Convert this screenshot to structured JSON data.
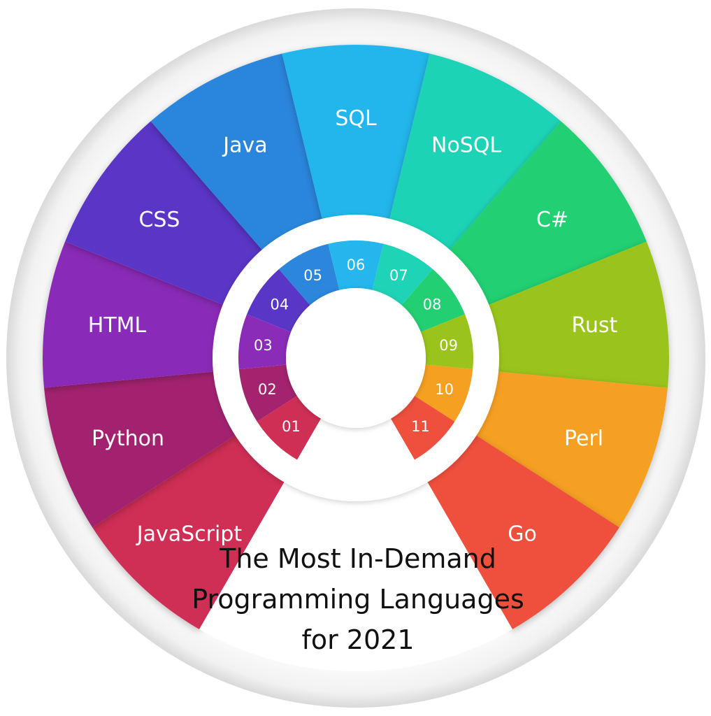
{
  "title_lines": [
    "The Most In-Demand",
    "Programming Languages",
    "for 2021"
  ],
  "segments": [
    {
      "number": "01",
      "language": "JavaScript",
      "color": "#cf2f55"
    },
    {
      "number": "02",
      "language": "Python",
      "color": "#a3236f"
    },
    {
      "number": "03",
      "language": "HTML",
      "color": "#8a2cb8"
    },
    {
      "number": "04",
      "language": "CSS",
      "color": "#5a36c6"
    },
    {
      "number": "05",
      "language": "Java",
      "color": "#2b86dc"
    },
    {
      "number": "06",
      "language": "SQL",
      "color": "#24b6ec"
    },
    {
      "number": "07",
      "language": "NoSQL",
      "color": "#1fd3b6"
    },
    {
      "number": "08",
      "language": "C#",
      "color": "#23cf73"
    },
    {
      "number": "09",
      "language": "Rust",
      "color": "#9ac41b"
    },
    {
      "number": "10",
      "language": "Perl",
      "color": "#f5a021"
    },
    {
      "number": "11",
      "language": "Go",
      "color": "#ef503e"
    }
  ]
}
